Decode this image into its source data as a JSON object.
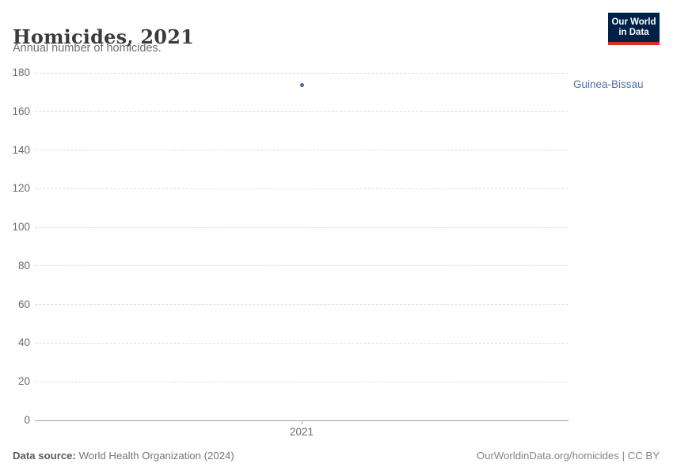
{
  "header": {
    "title": "Homicides, 2021",
    "subtitle": "Annual number of homicides."
  },
  "logo": {
    "line1": "Our World",
    "line2": "in Data",
    "bg_color": "#002147",
    "accent_color": "#dc2e1f"
  },
  "chart_data": {
    "type": "scatter",
    "title": "Homicides, 2021",
    "subtitle": "Annual number of homicides.",
    "x": [
      2021
    ],
    "xticks": [
      "2021"
    ],
    "series": [
      {
        "name": "Guinea-Bissau",
        "values": [
          174
        ],
        "color": "#4c6a9c",
        "label_color": "#54709e"
      }
    ],
    "ylim": [
      0,
      180
    ],
    "yticks": [
      0,
      20,
      40,
      60,
      80,
      100,
      120,
      140,
      160,
      180
    ],
    "grid": "horizontal-dashed",
    "legend_position": "entity-label-right"
  },
  "footer": {
    "datasource_label": "Data source:",
    "datasource_value": "World Health Organization (2024)",
    "credit": "OurWorldinData.org/homicides | CC BY"
  }
}
